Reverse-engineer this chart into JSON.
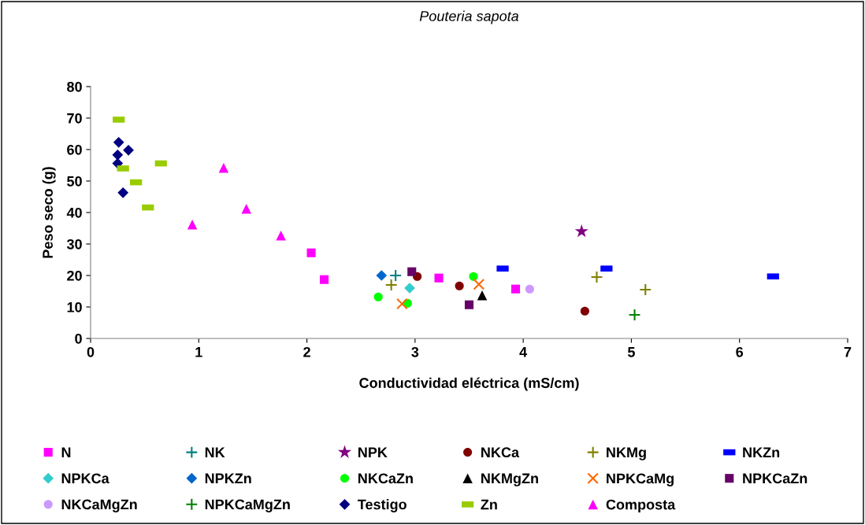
{
  "chart_data": {
    "type": "scatter",
    "title": "Pouteria sapota",
    "xlabel": "Conductividad eléctrica (mS/cm)",
    "ylabel": "Peso seco (g)",
    "xlim": [
      0,
      7
    ],
    "xticks": [
      0,
      1,
      2,
      3,
      4,
      5,
      6,
      7
    ],
    "ylim": [
      0,
      80
    ],
    "yticks": [
      0,
      10,
      20,
      30,
      40,
      50,
      60,
      70,
      80
    ],
    "grid": false,
    "legend": "bottom",
    "series": [
      {
        "name": "N",
        "color": "#ff00ff",
        "marker": "square",
        "x": [
          2.04,
          2.16,
          3.22,
          3.93
        ],
        "values": [
          27.2,
          18.7,
          19.2,
          15.7
        ]
      },
      {
        "name": "NK",
        "color": "#008080",
        "marker": "cross",
        "x": [
          2.82
        ],
        "values": [
          20
        ]
      },
      {
        "name": "NPK",
        "color": "#800080",
        "marker": "star",
        "x": [
          4.54
        ],
        "values": [
          34
        ]
      },
      {
        "name": "NKCa",
        "color": "#800000",
        "marker": "circle",
        "x": [
          3.02,
          3.41,
          4.57
        ],
        "values": [
          19.7,
          16.7,
          8.7
        ]
      },
      {
        "name": "NKMg",
        "color": "#808000",
        "marker": "cross",
        "x": [
          2.78,
          4.68,
          5.13
        ],
        "values": [
          17,
          19.5,
          15.5
        ]
      },
      {
        "name": "NKZn",
        "color": "#0000ff",
        "x": [
          3.81,
          4.77,
          6.31
        ],
        "values": [
          22.2,
          22.2,
          19.7
        ]
      },
      {
        "name": "NPKCa",
        "color": "#33cccc",
        "marker": "diamond",
        "x": [
          2.95
        ],
        "values": [
          16
        ]
      },
      {
        "name": "NPKZn",
        "color": "#0066cc",
        "marker": "diamond",
        "x": [
          2.69
        ],
        "values": [
          20
        ]
      },
      {
        "name": "NKCaZn",
        "color": "#00ff00",
        "marker": "circle",
        "x": [
          2.66,
          2.93,
          3.54
        ],
        "values": [
          13.2,
          11.2,
          19.7
        ]
      },
      {
        "name": "NKMgZn",
        "color": "#000000",
        "marker": "triangle",
        "x": [
          3.62
        ],
        "values": [
          13.7
        ]
      },
      {
        "name": "NPKCaMg",
        "color": "#ff6600",
        "marker": "x",
        "x": [
          2.88,
          3.59
        ],
        "values": [
          11,
          17.2
        ]
      },
      {
        "name": "NPKCaZn",
        "color": "#660066",
        "marker": "square",
        "x": [
          2.97,
          3.5
        ],
        "values": [
          21.2,
          10.7
        ]
      },
      {
        "name": "NKCaMgZn",
        "color": "#cc99ff",
        "marker": "circle",
        "x": [
          4.06
        ],
        "values": [
          15.7
        ]
      },
      {
        "name": "NPKCaMgZn",
        "color": "#008000",
        "marker": "cross",
        "x": [
          5.03
        ],
        "values": [
          7.5
        ]
      },
      {
        "name": "Testigo",
        "color": "#000080",
        "marker": "diamond",
        "x": [
          0.26,
          0.35,
          0.25,
          0.25,
          0.3
        ],
        "values": [
          62.3,
          59.8,
          58.3,
          55.6,
          46.3
        ]
      },
      {
        "name": "Zn",
        "color": "#99cc00",
        "x": [
          0.26,
          0.3,
          0.42,
          0.53,
          0.65
        ],
        "values": [
          69.5,
          54,
          49.6,
          41.6,
          55.6
        ]
      },
      {
        "name": "Composta",
        "color": "#ff00ff",
        "marker": "triangle",
        "x": [
          1.23,
          1.44,
          0.94,
          1.76
        ],
        "values": [
          54.2,
          41.2,
          36.2,
          32.7
        ]
      }
    ]
  }
}
